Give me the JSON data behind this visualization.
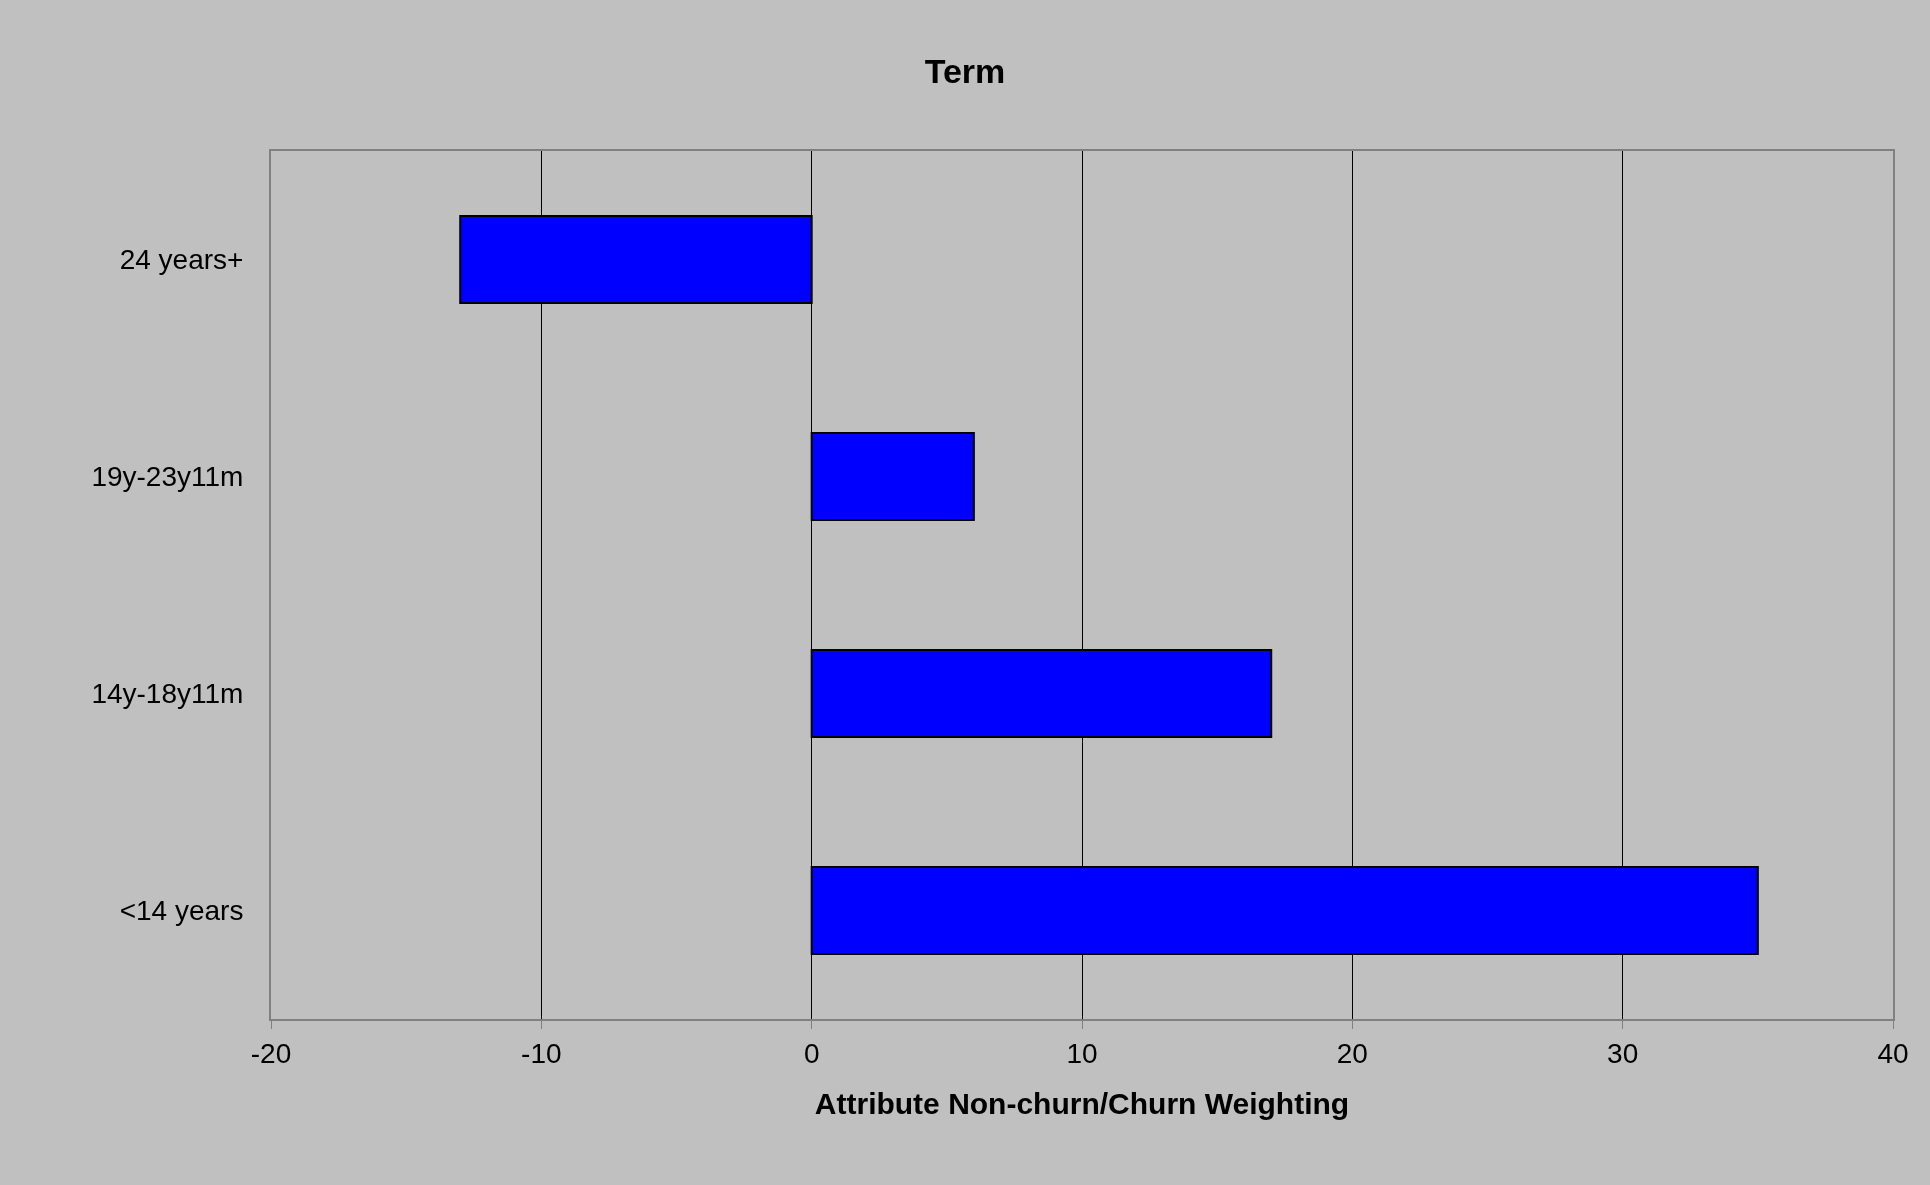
{
  "chart_data": {
    "type": "bar",
    "orientation": "horizontal",
    "title": "Term",
    "xlabel": "Attribute Non-churn/Churn Weighting",
    "categories": [
      "24 years+",
      "19y-23y11m",
      "14y-18y11m",
      "<14 years"
    ],
    "values": [
      -13,
      6,
      17,
      35
    ],
    "color": "#0000ff",
    "xlim": [
      -20,
      40
    ],
    "xticks": [
      -20,
      -10,
      0,
      10,
      20,
      30,
      40
    ],
    "grid": "x"
  }
}
